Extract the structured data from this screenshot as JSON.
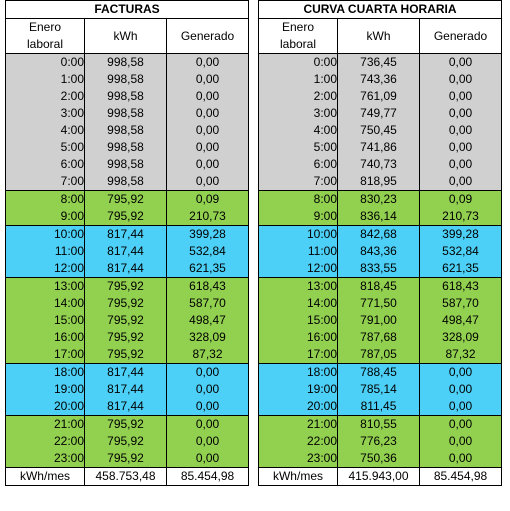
{
  "tables": [
    {
      "title": "FACTURAS",
      "headers": [
        "Enero laboral",
        "kWh",
        "Generado"
      ],
      "rows": [
        {
          "hour": "0:00",
          "kwh": "998,58",
          "gen": "0,00",
          "band": "gray"
        },
        {
          "hour": "1:00",
          "kwh": "998,58",
          "gen": "0,00",
          "band": "gray"
        },
        {
          "hour": "2:00",
          "kwh": "998,58",
          "gen": "0,00",
          "band": "gray"
        },
        {
          "hour": "3:00",
          "kwh": "998,58",
          "gen": "0,00",
          "band": "gray"
        },
        {
          "hour": "4:00",
          "kwh": "998,58",
          "gen": "0,00",
          "band": "gray"
        },
        {
          "hour": "5:00",
          "kwh": "998,58",
          "gen": "0,00",
          "band": "gray"
        },
        {
          "hour": "6:00",
          "kwh": "998,58",
          "gen": "0,00",
          "band": "gray"
        },
        {
          "hour": "7:00",
          "kwh": "998,58",
          "gen": "0,00",
          "band": "gray"
        },
        {
          "hour": "8:00",
          "kwh": "795,92",
          "gen": "0,09",
          "band": "green"
        },
        {
          "hour": "9:00",
          "kwh": "795,92",
          "gen": "210,73",
          "band": "green"
        },
        {
          "hour": "10:00",
          "kwh": "817,44",
          "gen": "399,28",
          "band": "blue"
        },
        {
          "hour": "11:00",
          "kwh": "817,44",
          "gen": "532,84",
          "band": "blue"
        },
        {
          "hour": "12:00",
          "kwh": "817,44",
          "gen": "621,35",
          "band": "blue"
        },
        {
          "hour": "13:00",
          "kwh": "795,92",
          "gen": "618,43",
          "band": "green"
        },
        {
          "hour": "14:00",
          "kwh": "795,92",
          "gen": "587,70",
          "band": "green"
        },
        {
          "hour": "15:00",
          "kwh": "795,92",
          "gen": "498,47",
          "band": "green"
        },
        {
          "hour": "16:00",
          "kwh": "795,92",
          "gen": "328,09",
          "band": "green"
        },
        {
          "hour": "17:00",
          "kwh": "795,92",
          "gen": "87,32",
          "band": "green"
        },
        {
          "hour": "18:00",
          "kwh": "817,44",
          "gen": "0,00",
          "band": "blue"
        },
        {
          "hour": "19:00",
          "kwh": "817,44",
          "gen": "0,00",
          "band": "blue"
        },
        {
          "hour": "20:00",
          "kwh": "817,44",
          "gen": "0,00",
          "band": "blue"
        },
        {
          "hour": "21:00",
          "kwh": "795,92",
          "gen": "0,00",
          "band": "green"
        },
        {
          "hour": "22:00",
          "kwh": "795,92",
          "gen": "0,00",
          "band": "green"
        },
        {
          "hour": "23:00",
          "kwh": "795,92",
          "gen": "0,00",
          "band": "green"
        }
      ],
      "footer": {
        "label": "kWh/mes",
        "kwh": "458.753,48",
        "gen": "85.454,98"
      }
    },
    {
      "title": "CURVA CUARTA HORARIA",
      "headers": [
        "Enero laboral",
        "kWh",
        "Generado"
      ],
      "rows": [
        {
          "hour": "0:00",
          "kwh": "736,45",
          "gen": "0,00",
          "band": "gray"
        },
        {
          "hour": "1:00",
          "kwh": "743,36",
          "gen": "0,00",
          "band": "gray"
        },
        {
          "hour": "2:00",
          "kwh": "761,09",
          "gen": "0,00",
          "band": "gray"
        },
        {
          "hour": "3:00",
          "kwh": "749,77",
          "gen": "0,00",
          "band": "gray"
        },
        {
          "hour": "4:00",
          "kwh": "750,45",
          "gen": "0,00",
          "band": "gray"
        },
        {
          "hour": "5:00",
          "kwh": "741,86",
          "gen": "0,00",
          "band": "gray"
        },
        {
          "hour": "6:00",
          "kwh": "740,73",
          "gen": "0,00",
          "band": "gray"
        },
        {
          "hour": "7:00",
          "kwh": "818,95",
          "gen": "0,00",
          "band": "gray"
        },
        {
          "hour": "8:00",
          "kwh": "830,23",
          "gen": "0,09",
          "band": "green"
        },
        {
          "hour": "9:00",
          "kwh": "836,14",
          "gen": "210,73",
          "band": "green"
        },
        {
          "hour": "10:00",
          "kwh": "842,68",
          "gen": "399,28",
          "band": "blue"
        },
        {
          "hour": "11:00",
          "kwh": "843,36",
          "gen": "532,84",
          "band": "blue"
        },
        {
          "hour": "12:00",
          "kwh": "833,55",
          "gen": "621,35",
          "band": "blue"
        },
        {
          "hour": "13:00",
          "kwh": "818,45",
          "gen": "618,43",
          "band": "green"
        },
        {
          "hour": "14:00",
          "kwh": "771,50",
          "gen": "587,70",
          "band": "green"
        },
        {
          "hour": "15:00",
          "kwh": "791,00",
          "gen": "498,47",
          "band": "green"
        },
        {
          "hour": "16:00",
          "kwh": "787,68",
          "gen": "328,09",
          "band": "green"
        },
        {
          "hour": "17:00",
          "kwh": "787,05",
          "gen": "87,32",
          "band": "green"
        },
        {
          "hour": "18:00",
          "kwh": "788,45",
          "gen": "0,00",
          "band": "blue"
        },
        {
          "hour": "19:00",
          "kwh": "785,14",
          "gen": "0,00",
          "band": "blue"
        },
        {
          "hour": "20:00",
          "kwh": "811,45",
          "gen": "0,00",
          "band": "blue"
        },
        {
          "hour": "21:00",
          "kwh": "810,55",
          "gen": "0,00",
          "band": "green"
        },
        {
          "hour": "22:00",
          "kwh": "776,23",
          "gen": "0,00",
          "band": "green"
        },
        {
          "hour": "23:00",
          "kwh": "750,36",
          "gen": "0,00",
          "band": "green"
        }
      ],
      "footer": {
        "label": "kWh/mes",
        "kwh": "415.943,00",
        "gen": "85.454,98"
      }
    }
  ],
  "colors": {
    "gray": "#d0d0d0",
    "green": "#92d050",
    "blue": "#4dd0f7"
  }
}
